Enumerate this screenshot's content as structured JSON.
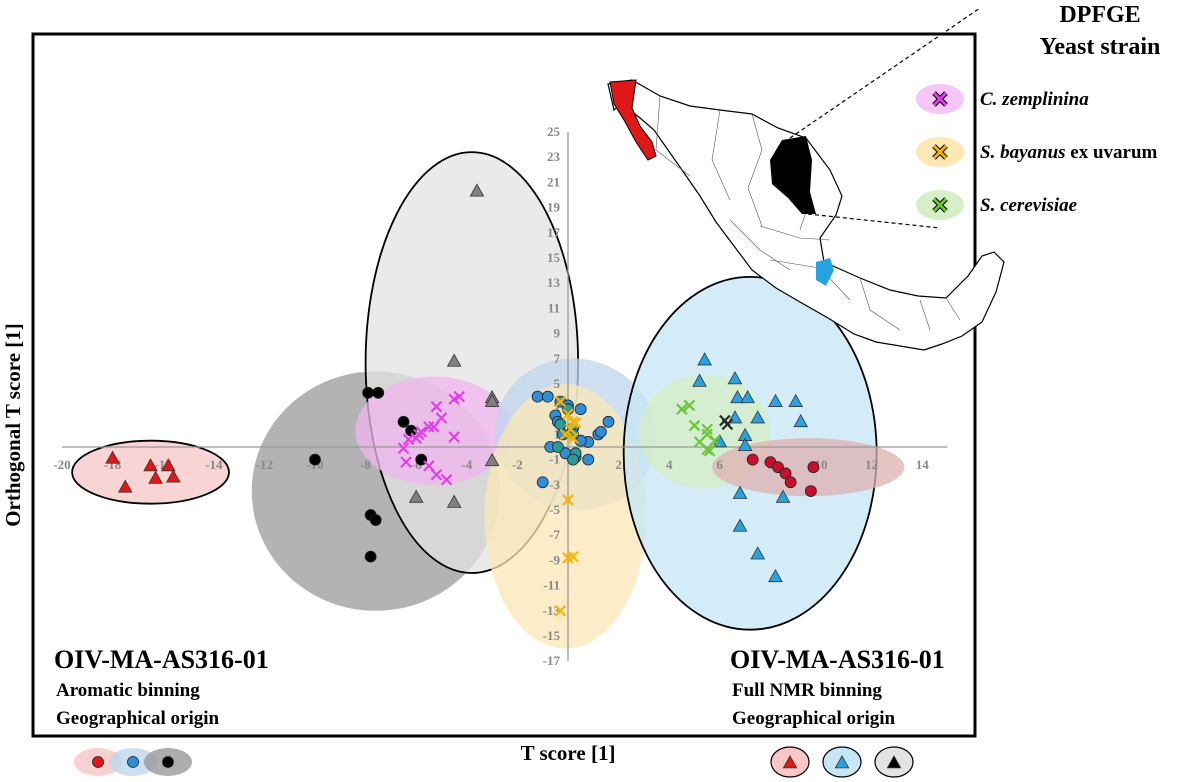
{
  "chart_data": {
    "type": "scatter",
    "xlabel": "T score [1]",
    "ylabel": "Orthogonal T score [1]",
    "xlim": [
      -20,
      15
    ],
    "ylim": [
      -17,
      25
    ],
    "x_ticks": [
      -20,
      -18,
      -16,
      -14,
      -12,
      -10,
      -8,
      -6,
      -4,
      -2,
      2,
      4,
      6,
      8,
      10,
      12,
      14
    ],
    "y_ticks": [
      -17,
      -15,
      -13,
      -11,
      -9,
      -7,
      -5,
      -3,
      -1,
      1,
      3,
      5,
      7,
      9,
      11,
      13,
      15,
      17,
      19,
      21,
      23,
      25
    ],
    "left_panel": {
      "title": "OIV-MA-AS316-01",
      "line1": "Aromatic binning",
      "line2": "Geographical origin"
    },
    "right_panel": {
      "title": "OIV-MA-AS316-01",
      "line1": "Full NMR binning",
      "line2": "Geographical origin"
    },
    "legend_title_line1": "DPFGE",
    "legend_title_line2": "Yeast strain",
    "yeast_legend": [
      {
        "italic": "C. zemplinina",
        "rest": "",
        "color": "#e040e8",
        "bg": "#f5c6f8"
      },
      {
        "italic": "S. bayanus",
        "rest": " ex uvarum",
        "color": "#f5b400",
        "bg": "#fde8b4"
      },
      {
        "italic": "S. cerevisiae",
        "rest": "",
        "color": "#6cc63a",
        "bg": "#d6efc6"
      }
    ],
    "ellipses": [
      {
        "name": "red-tri-left",
        "cx": -16.5,
        "cy": -2.0,
        "rx": 3.1,
        "ry": 2.5,
        "angle": 0,
        "fill": "#f7c6c6",
        "stroke": "#000000"
      },
      {
        "name": "dark-grey-circles",
        "cx": -7.6,
        "cy": -3.5,
        "rx": 4.9,
        "ry": 9.5,
        "angle": 0,
        "fill": "#9a9a9a",
        "stroke": "none"
      },
      {
        "name": "light-grey-tri",
        "cx": -3.8,
        "cy": 6.7,
        "rx": 4.2,
        "ry": 16.7,
        "angle": 0,
        "fill": "#e3e3e3",
        "stroke": "#000000"
      },
      {
        "name": "magenta-x",
        "cx": -5.3,
        "cy": 1.3,
        "rx": 3.1,
        "ry": 4.3,
        "angle": 0,
        "fill": "#f0b6ef",
        "stroke": "none"
      },
      {
        "name": "blue-circles",
        "cx": 0.3,
        "cy": 1.0,
        "rx": 3.2,
        "ry": 6.0,
        "angle": 0.25,
        "fill": "#bfd6ee",
        "stroke": "none"
      },
      {
        "name": "yellow-x",
        "cx": -0.1,
        "cy": -5.5,
        "rx": 3.2,
        "ry": 10.5,
        "angle": 0,
        "fill": "#fbe7b6",
        "stroke": "none"
      },
      {
        "name": "blue-tri-right",
        "cx": 7.2,
        "cy": -0.5,
        "rx": 5.0,
        "ry": 14.0,
        "angle": 0,
        "fill": "#c6e5f5",
        "stroke": "#000000"
      },
      {
        "name": "green-x",
        "cx": 5.4,
        "cy": 1.2,
        "rx": 2.6,
        "ry": 4.5,
        "angle": 0,
        "fill": "#d6efc6",
        "stroke": "none"
      },
      {
        "name": "red-circles-right",
        "cx": 9.5,
        "cy": -1.6,
        "rx": 3.8,
        "ry": 2.3,
        "angle": 0,
        "fill": "#deb0b0",
        "stroke": "none"
      }
    ],
    "series": [
      {
        "name": "red-triangles-left",
        "marker": "triangle",
        "color": "#e01818",
        "x": [
          -18.0,
          -16.5,
          -15.8,
          -15.6,
          -17.5,
          -16.3
        ],
        "y": [
          -0.9,
          -1.5,
          -1.5,
          -2.4,
          -3.2,
          -2.5
        ]
      },
      {
        "name": "black-circles",
        "marker": "circle",
        "color": "#000000",
        "x": [
          -10.0,
          -7.9,
          -7.5,
          -6.5,
          -6.2,
          -7.8,
          -7.6,
          -7.8,
          -5.8
        ],
        "y": [
          -1.0,
          4.3,
          4.3,
          2.0,
          1.3,
          -5.4,
          -5.8,
          -8.7,
          -1.0
        ]
      },
      {
        "name": "grey-triangles",
        "marker": "triangle",
        "color": "#808080",
        "x": [
          -3.6,
          -4.5,
          -3.0,
          -3.0,
          -3.0,
          -6.0,
          -4.5
        ],
        "y": [
          20.3,
          6.8,
          3.9,
          3.6,
          -1.1,
          -4.0,
          -4.4
        ]
      },
      {
        "name": "magenta-crosses",
        "marker": "x",
        "color": "#e040e8",
        "x": [
          -4.3,
          -4.5,
          -5.2,
          -5.0,
          -5.3,
          -5.5,
          -5.8,
          -5.9,
          -6.0,
          -4.5,
          -6.3,
          -6.5,
          -6.4,
          -5.5,
          -5.2,
          -4.8
        ],
        "y": [
          4.0,
          3.8,
          3.2,
          2.3,
          1.6,
          1.6,
          1.2,
          1.0,
          0.7,
          0.8,
          0.6,
          -0.1,
          -1.2,
          -1.5,
          -2.2,
          -2.6
        ]
      },
      {
        "name": "blue-circles",
        "marker": "circle",
        "color": "#2f8fd6",
        "x": [
          -1.2,
          -0.8,
          -0.3,
          0.0,
          0.5,
          -0.5,
          -0.4,
          0.2,
          -0.2,
          1.2,
          1.6,
          1.3,
          0.8,
          0.5,
          -0.7,
          -0.1,
          0.8,
          0.3,
          -1.0
        ],
        "y": [
          4.0,
          4.0,
          3.6,
          3.3,
          3.0,
          2.5,
          2.0,
          1.5,
          1.0,
          1.0,
          2.0,
          1.2,
          0.4,
          0.5,
          0.0,
          -0.5,
          -1.0,
          -0.8,
          -2.8
        ]
      },
      {
        "name": "teal-circles",
        "marker": "circle",
        "color": "#2d9a9a",
        "x": [
          0.0,
          -0.3,
          0.2,
          -0.4,
          0.3,
          0.2
        ],
        "y": [
          3.0,
          1.8,
          1.0,
          0.0,
          -0.5,
          -1.0
        ]
      },
      {
        "name": "yellow-crosses",
        "marker": "x",
        "color": "#f5b400",
        "x": [
          -0.3,
          0.0,
          0.2,
          0.3,
          0.1,
          -0.1,
          0.2,
          0.0,
          0.2,
          0.0,
          -0.3
        ],
        "y": [
          3.6,
          2.6,
          2.0,
          1.9,
          1.4,
          1.0,
          0.7,
          -4.2,
          -8.7,
          -8.8,
          -13.0
        ]
      },
      {
        "name": "blue-triangles-right",
        "marker": "triangle",
        "color": "#29a3e0",
        "x": [
          5.4,
          5.2,
          6.6,
          6.7,
          7.1,
          8.2,
          9.0,
          7.5,
          9.2,
          6.6,
          7.0,
          6.0,
          7.0,
          6.8,
          8.5,
          6.8,
          7.5,
          8.2
        ],
        "y": [
          6.9,
          5.2,
          5.4,
          3.9,
          3.9,
          3.6,
          3.6,
          2.3,
          2.0,
          2.3,
          0.9,
          0.4,
          0.1,
          -3.7,
          -4.0,
          -6.3,
          -8.5,
          -10.3
        ]
      },
      {
        "name": "green-crosses",
        "marker": "x",
        "color": "#6cc63a",
        "x": [
          4.5,
          4.8,
          5.0,
          5.5,
          5.5,
          5.2,
          5.5,
          5.8,
          5.6
        ],
        "y": [
          3.0,
          3.3,
          1.7,
          1.4,
          1.0,
          0.4,
          -0.2,
          0.5,
          -0.3
        ]
      },
      {
        "name": "dark-crosses",
        "marker": "x",
        "color": "#2a2a2a",
        "x": [
          6.2,
          6.3
        ],
        "y": [
          2.1,
          1.8
        ]
      },
      {
        "name": "red-circles-right",
        "marker": "circle",
        "color": "#c8102e",
        "x": [
          7.3,
          8.0,
          8.3,
          8.6,
          8.8,
          9.7,
          9.6
        ],
        "y": [
          -1.0,
          -1.2,
          -1.6,
          -2.1,
          -2.8,
          -1.6,
          -3.5
        ]
      }
    ],
    "bottom_left_legend": [
      {
        "fill": "#e01818",
        "bg": "#f7c6c6"
      },
      {
        "fill": "#2f8fd6",
        "bg": "#bfd6ee"
      },
      {
        "fill": "#000000",
        "bg": "#9a9a9a"
      }
    ],
    "bottom_right_legend": [
      {
        "fill": "#e01818",
        "bg": "#f7c6c6"
      },
      {
        "fill": "#29a3e0",
        "bg": "#c6e5f5"
      },
      {
        "fill": "#000000",
        "bg": "#e3e3e3"
      }
    ]
  }
}
